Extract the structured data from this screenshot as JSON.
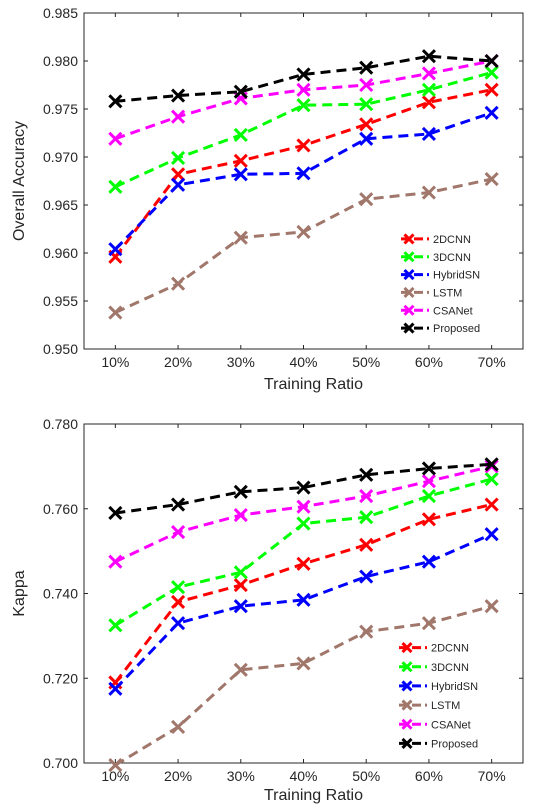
{
  "chart_data": [
    {
      "type": "line",
      "xlabel": "Training Ratio",
      "ylabel": "Overall Accuracy",
      "categories": [
        "10%",
        "20%",
        "30%",
        "40%",
        "50%",
        "60%",
        "70%"
      ],
      "ylim": [
        0.95,
        0.985
      ],
      "yticks": [
        "0.950",
        "0.955",
        "0.960",
        "0.965",
        "0.970",
        "0.975",
        "0.980",
        "0.985"
      ],
      "grid": false,
      "legend_position": "bottom-right",
      "series": [
        {
          "name": "2DCNN",
          "color": "#ff0000",
          "values": [
            0.9596,
            0.9682,
            0.9696,
            0.9712,
            0.9734,
            0.9757,
            0.977
          ]
        },
        {
          "name": "3DCNN",
          "color": "#00ff00",
          "values": [
            0.9669,
            0.9699,
            0.9723,
            0.9754,
            0.9755,
            0.977,
            0.9788
          ]
        },
        {
          "name": "HybridSN",
          "color": "#0000ff",
          "values": [
            0.9604,
            0.9671,
            0.9682,
            0.9683,
            0.9719,
            0.9724,
            0.9746
          ]
        },
        {
          "name": "LSTM",
          "color": "#a0776a",
          "values": [
            0.9538,
            0.9568,
            0.9616,
            0.9622,
            0.9656,
            0.9663,
            0.9677
          ]
        },
        {
          "name": "CSANet",
          "color": "#ff00ff",
          "values": [
            0.9719,
            0.9742,
            0.9761,
            0.977,
            0.9775,
            0.9787,
            0.98
          ]
        },
        {
          "name": "Proposed",
          "color": "#000000",
          "values": [
            0.9758,
            0.9764,
            0.9768,
            0.9786,
            0.9793,
            0.9805,
            0.98
          ]
        }
      ]
    },
    {
      "type": "line",
      "xlabel": "Training Ratio",
      "ylabel": "Kappa",
      "categories": [
        "10%",
        "20%",
        "30%",
        "40%",
        "50%",
        "60%",
        "70%"
      ],
      "ylim": [
        0.7,
        0.78
      ],
      "yticks": [
        "0.700",
        "0.720",
        "0.740",
        "0.760",
        "0.780"
      ],
      "grid": false,
      "legend_position": "bottom-right",
      "series": [
        {
          "name": "2DCNN",
          "color": "#ff0000",
          "values": [
            0.719,
            0.738,
            0.742,
            0.747,
            0.7515,
            0.7575,
            0.761
          ]
        },
        {
          "name": "3DCNN",
          "color": "#00ff00",
          "values": [
            0.7325,
            0.7415,
            0.745,
            0.7565,
            0.758,
            0.763,
            0.767
          ]
        },
        {
          "name": "HybridSN",
          "color": "#0000ff",
          "values": [
            0.7175,
            0.733,
            0.737,
            0.7385,
            0.744,
            0.7475,
            0.754
          ]
        },
        {
          "name": "LSTM",
          "color": "#a0776a",
          "values": [
            0.6995,
            0.7085,
            0.722,
            0.7235,
            0.731,
            0.733,
            0.737
          ]
        },
        {
          "name": "CSANet",
          "color": "#ff00ff",
          "values": [
            0.7475,
            0.7545,
            0.7585,
            0.7605,
            0.763,
            0.7665,
            0.77
          ]
        },
        {
          "name": "Proposed",
          "color": "#000000",
          "values": [
            0.759,
            0.761,
            0.764,
            0.765,
            0.768,
            0.7695,
            0.7705
          ]
        }
      ]
    }
  ]
}
